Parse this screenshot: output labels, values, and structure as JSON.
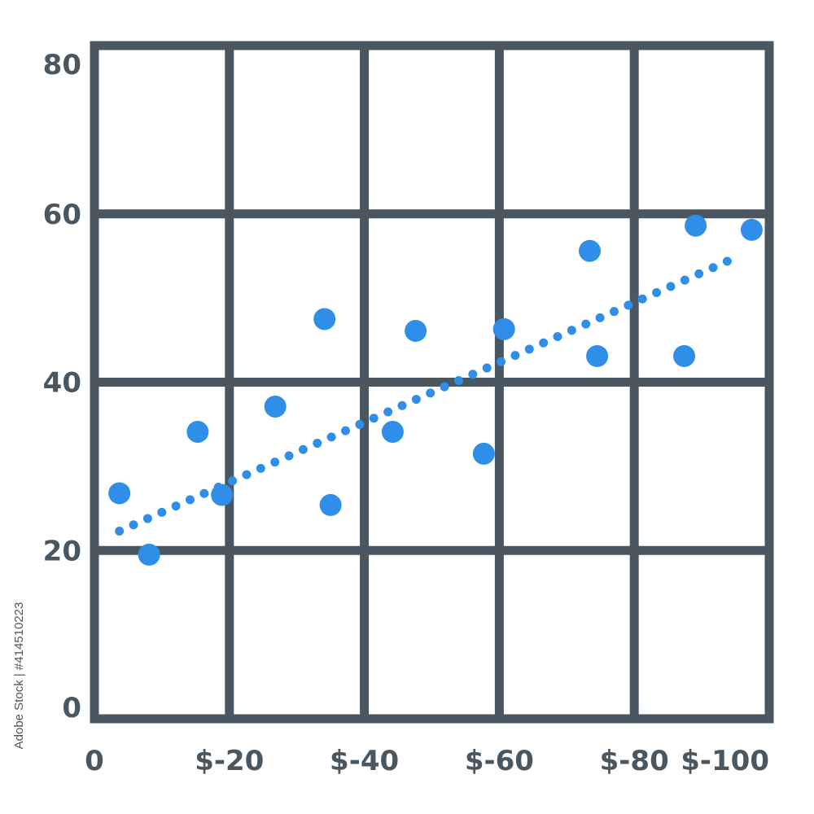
{
  "chart_data": {
    "type": "scatter",
    "title": "",
    "xlabel": "",
    "ylabel": "",
    "x_tick_values": [
      0,
      20,
      40,
      60,
      80,
      100
    ],
    "x_tick_labels": [
      "0",
      "$-20",
      "$-40",
      "$-60",
      "$-80",
      "$-100"
    ],
    "y_tick_values": [
      0,
      20,
      40,
      60,
      80
    ],
    "y_tick_labels": [
      "0",
      "20",
      "40",
      "60",
      "80"
    ],
    "xlim": [
      0,
      100
    ],
    "ylim": [
      0,
      80
    ],
    "grid": true,
    "legend": "none",
    "series": [
      {
        "points": [
          {
            "x": 3.7,
            "y": 26.8
          },
          {
            "x": 8.1,
            "y": 19.5
          },
          {
            "x": 15.3,
            "y": 34.1
          },
          {
            "x": 18.9,
            "y": 26.6
          },
          {
            "x": 26.8,
            "y": 37.1
          },
          {
            "x": 34.1,
            "y": 47.5
          },
          {
            "x": 35.0,
            "y": 25.4
          },
          {
            "x": 44.2,
            "y": 34.1
          },
          {
            "x": 47.6,
            "y": 46.1
          },
          {
            "x": 57.7,
            "y": 31.5
          },
          {
            "x": 60.7,
            "y": 46.3
          },
          {
            "x": 73.4,
            "y": 55.6
          },
          {
            "x": 74.5,
            "y": 43.1
          },
          {
            "x": 87.4,
            "y": 43.1
          },
          {
            "x": 89.1,
            "y": 58.6
          },
          {
            "x": 97.4,
            "y": 58.1
          }
        ]
      }
    ],
    "trendline": {
      "style": "dotted",
      "x": [
        3.7,
        95.0
      ],
      "y": [
        22.3,
        54.8
      ]
    }
  },
  "colors": {
    "axis_grid": "#4a5761",
    "point": "#2f8fe8",
    "trendline": "#2f8fe8",
    "tick_label": "#4a5761"
  },
  "credit": "Adobe Stock | #414510223"
}
